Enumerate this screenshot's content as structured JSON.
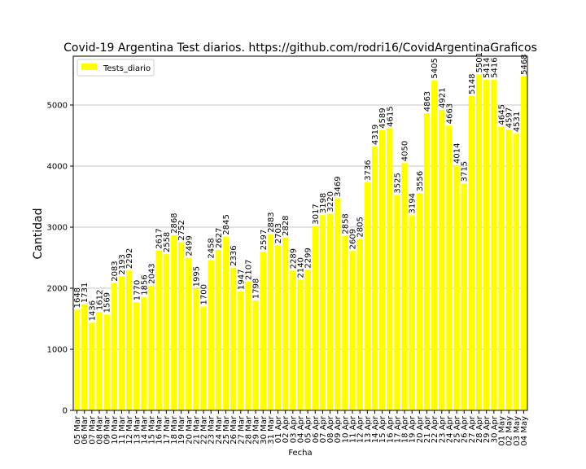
{
  "chart_data": {
    "type": "bar",
    "title": "Covid-19 Argentina Test diarios. https://github.com/rodri16/CovidArgentinaGraficos",
    "xlabel": "Fecha",
    "ylabel": "Cantidad",
    "ylim": [
      0,
      5800
    ],
    "yticks": [
      0,
      1000,
      2000,
      3000,
      4000,
      5000
    ],
    "grid": "horizontal",
    "legend_position": "top-left",
    "bar_color": "#ffff00",
    "series": [
      {
        "name": "Tests_diario",
        "values": [
          1648,
          1731,
          1436,
          1612,
          1569,
          2083,
          2193,
          2292,
          1770,
          1856,
          2043,
          2617,
          2558,
          2868,
          2752,
          2499,
          1995,
          1700,
          2458,
          2627,
          2845,
          2336,
          1947,
          2107,
          1798,
          2597,
          2883,
          2703,
          2828,
          2289,
          2140,
          2299,
          3017,
          3198,
          3220,
          3469,
          2858,
          2609,
          2805,
          3736,
          4319,
          4589,
          4615,
          3525,
          4050,
          3194,
          3556,
          4863,
          5405,
          4921,
          4663,
          4014,
          3715,
          5148,
          5501,
          5414,
          5416,
          4645,
          4597,
          4531,
          5468
        ]
      }
    ],
    "categories": [
      "05 Mar",
      "06 Mar",
      "07 Mar",
      "08 Mar",
      "09 Mar",
      "10 Mar",
      "11 Mar",
      "12 Mar",
      "13 Mar",
      "14 Mar",
      "15 Mar",
      "16 Mar",
      "17 Mar",
      "18 Mar",
      "19 Mar",
      "20 Mar",
      "21 Mar",
      "22 Mar",
      "23 Mar",
      "24 Mar",
      "25 Mar",
      "26 Mar",
      "27 Mar",
      "28 Mar",
      "29 Mar",
      "30 Mar",
      "31 Mar",
      "01 Apr",
      "02 Apr",
      "03 Apr",
      "04 Apr",
      "05 Apr",
      "06 Apr",
      "07 Apr",
      "08 Apr",
      "09 Apr",
      "10 Apr",
      "11 Apr",
      "12 Apr",
      "13 Apr",
      "14 Apr",
      "15 Apr",
      "16 Apr",
      "17 Apr",
      "18 Apr",
      "19 Apr",
      "20 Apr",
      "21 Apr",
      "22 Apr",
      "23 Apr",
      "24 Apr",
      "25 Apr",
      "26 Apr",
      "27 Apr",
      "28 Apr",
      "29 Apr",
      "30 Apr",
      "01 May",
      "02 May",
      "03 May",
      "04 May"
    ]
  }
}
